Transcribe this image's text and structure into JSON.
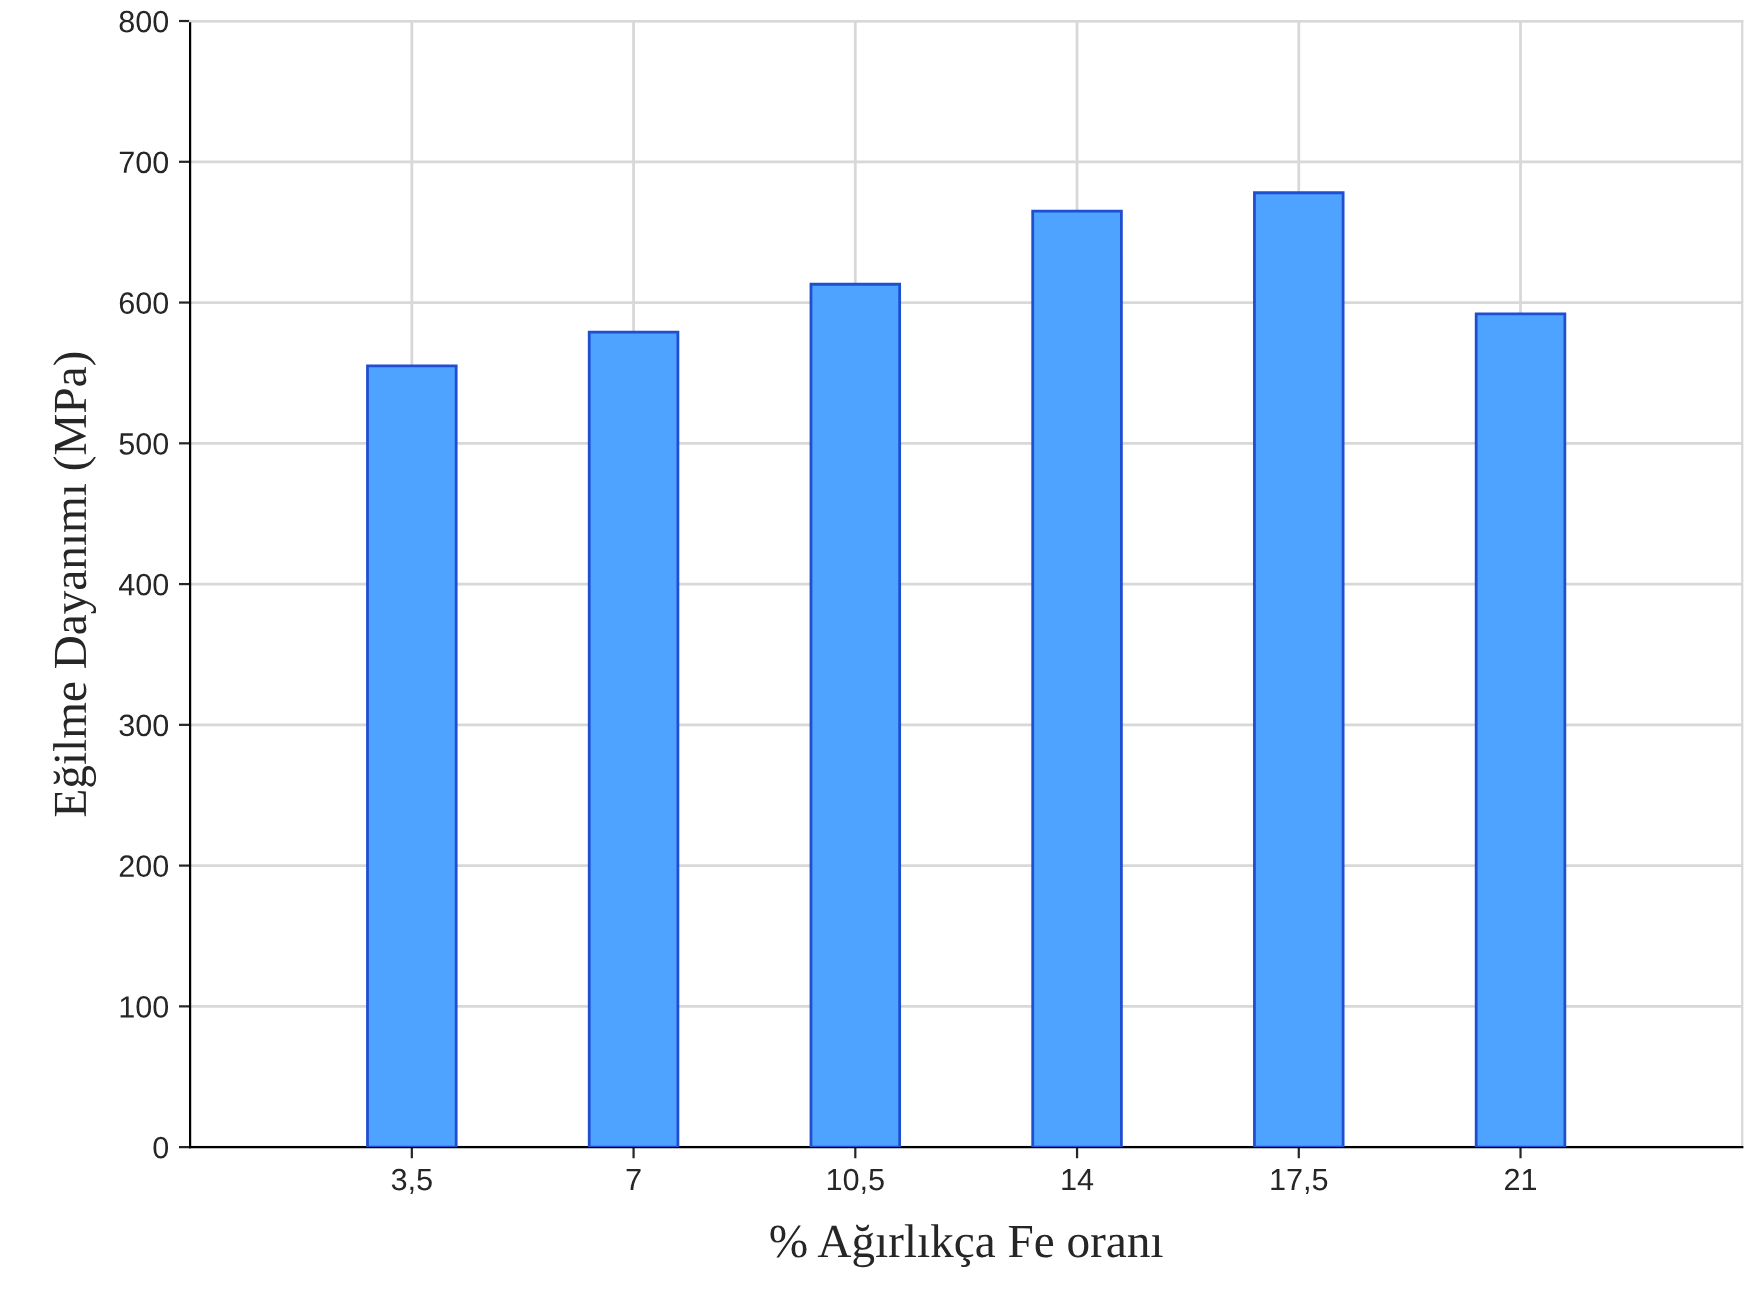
{
  "chart_data": {
    "type": "bar",
    "xlabel": "% Ağırlıkça Fe oranı",
    "ylabel": "Eğilme Dayanımı (MPa)",
    "categories": [
      "3,5",
      "7",
      "10,5",
      "14",
      "17,5",
      "21"
    ],
    "values": [
      555,
      579,
      613,
      665,
      678,
      592
    ],
    "color": "#4da3ff",
    "ylim": [
      0,
      800
    ],
    "yticks": [
      0,
      100,
      200,
      300,
      400,
      500,
      600,
      700,
      800
    ],
    "grid": true
  }
}
